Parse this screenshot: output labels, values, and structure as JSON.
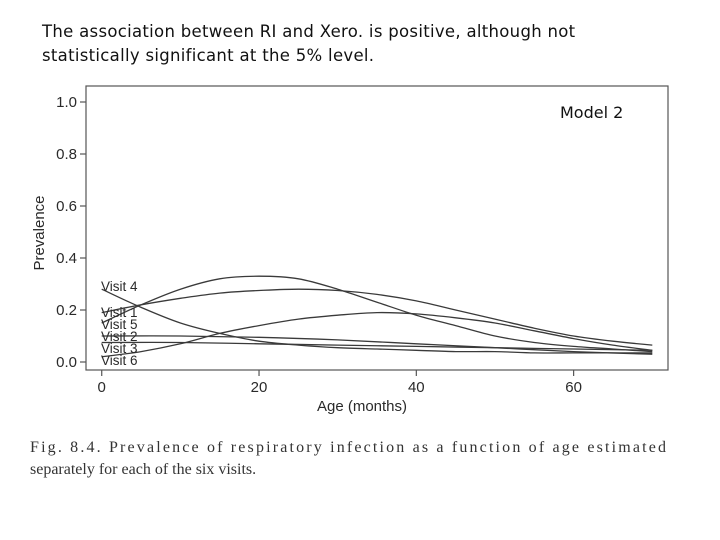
{
  "slide": {
    "text_line1": "The association between RI and Xero. is positive, although not",
    "text_line2": "statistically significant at the 5% level."
  },
  "figure": {
    "model_label": "Model 2",
    "caption_line1": "Fig. 8.4.   Prevalence of respiratory infection as a function of age estimated",
    "caption_line2": "separately for each of the six visits."
  },
  "chart_data": {
    "type": "line",
    "title": "",
    "xlabel": "Age (months)",
    "ylabel": "Prevalence",
    "xlim": [
      -2,
      72
    ],
    "ylim": [
      0.0,
      1.0
    ],
    "xticks": [
      0,
      20,
      40,
      60
    ],
    "yticks": [
      "0.0",
      "0.2",
      "0.4",
      "0.6",
      "0.8",
      "1.0"
    ],
    "grid": false,
    "legend": "direct labels at left of curves",
    "series": [
      {
        "name": "Visit 4",
        "x": [
          0,
          5,
          10,
          15,
          20,
          25,
          30,
          35,
          40,
          45,
          50,
          55,
          60,
          65,
          70
        ],
        "values": [
          0.28,
          0.21,
          0.15,
          0.11,
          0.08,
          0.065,
          0.055,
          0.05,
          0.045,
          0.04,
          0.04,
          0.035,
          0.035,
          0.035,
          0.035
        ]
      },
      {
        "name": "Visit 1",
        "x": [
          0,
          5,
          10,
          15,
          20,
          25,
          30,
          35,
          40,
          45,
          50,
          55,
          60,
          65,
          70
        ],
        "values": [
          0.15,
          0.22,
          0.28,
          0.32,
          0.33,
          0.32,
          0.28,
          0.23,
          0.18,
          0.14,
          0.1,
          0.075,
          0.06,
          0.05,
          0.04
        ]
      },
      {
        "name": "Visit 5",
        "x": [
          0,
          5,
          10,
          15,
          20,
          25,
          30,
          35,
          40,
          45,
          50,
          55,
          60,
          65,
          70
        ],
        "values": [
          0.19,
          0.22,
          0.245,
          0.265,
          0.275,
          0.28,
          0.275,
          0.26,
          0.235,
          0.2,
          0.165,
          0.13,
          0.1,
          0.08,
          0.065
        ]
      },
      {
        "name": "Visit 2",
        "x": [
          0,
          10,
          20,
          30,
          40,
          50,
          60,
          70
        ],
        "values": [
          0.1,
          0.1,
          0.095,
          0.085,
          0.07,
          0.055,
          0.04,
          0.03
        ]
      },
      {
        "name": "Visit 3",
        "x": [
          0,
          10,
          20,
          30,
          40,
          50,
          60,
          70
        ],
        "values": [
          0.075,
          0.075,
          0.07,
          0.065,
          0.06,
          0.055,
          0.05,
          0.045
        ]
      },
      {
        "name": "Visit 6",
        "x": [
          0,
          5,
          10,
          15,
          20,
          25,
          30,
          35,
          40,
          45,
          50,
          55,
          60,
          65,
          70
        ],
        "values": [
          0.02,
          0.04,
          0.07,
          0.11,
          0.14,
          0.165,
          0.18,
          0.19,
          0.185,
          0.17,
          0.15,
          0.12,
          0.09,
          0.065,
          0.045
        ]
      }
    ]
  }
}
